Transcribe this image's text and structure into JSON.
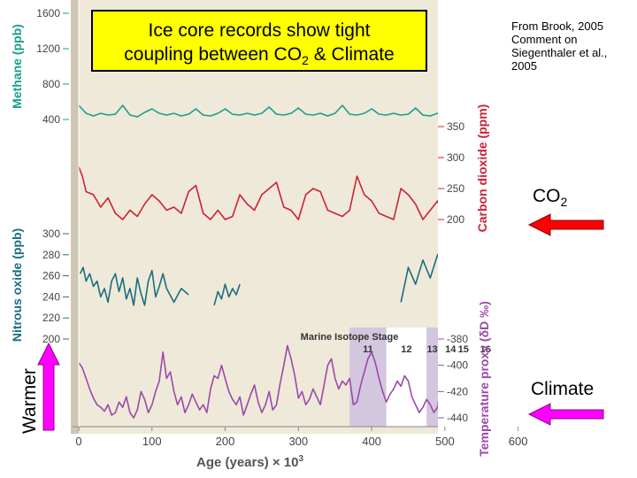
{
  "title": {
    "line1": "Ice core records show tight",
    "line2_pre": "coupling between CO",
    "line2_sub": "2",
    "line2_post": " & Climate"
  },
  "source": {
    "line1": "From Brook, 2005",
    "line2": "Comment on",
    "line3": "Siegenthaler et al.,",
    "line4": "2005"
  },
  "annotations": {
    "co2_label": "CO",
    "co2_sub": "2",
    "climate_label": "Climate",
    "warmer_label": "Warmer"
  },
  "colors": {
    "methane": "#1a9e8e",
    "co2": "#cc2233",
    "n2o": "#1a6e80",
    "temp": "#9a4aa8",
    "panel_bg": "#efe9d9",
    "shade": "#d3c6df",
    "arrow_red": "#ff0000",
    "arrow_magenta": "#ff00ff"
  },
  "chart_data": {
    "type": "line",
    "xlabel_main": "Age (years) × 10",
    "xlabel_sup": "3",
    "x_range": [
      0,
      650
    ],
    "x_ticks": [
      "0",
      "100",
      "200",
      "300",
      "400",
      "500",
      "600"
    ],
    "methane": {
      "label": "Methane (ppb)",
      "ticks": [
        "1600",
        "1200",
        "800",
        "400"
      ],
      "range": [
        400,
        1600
      ],
      "x": [
        0,
        10,
        20,
        30,
        40,
        50,
        60,
        70,
        80,
        90,
        100,
        110,
        120,
        130,
        140,
        150,
        160,
        170,
        180,
        190,
        200,
        210,
        220,
        230,
        240,
        250,
        260,
        270,
        280,
        290,
        300,
        310,
        320,
        330,
        340,
        350,
        360,
        370,
        380,
        390,
        400,
        410,
        420,
        430,
        440,
        450,
        460,
        470,
        480,
        490,
        500,
        510,
        520,
        530,
        540,
        550,
        560,
        570,
        580,
        590,
        600,
        610,
        620,
        630,
        640,
        650
      ],
      "y": [
        560,
        470,
        440,
        470,
        450,
        460,
        560,
        450,
        430,
        480,
        520,
        470,
        450,
        470,
        440,
        460,
        520,
        450,
        440,
        470,
        520,
        460,
        450,
        470,
        450,
        470,
        540,
        460,
        450,
        470,
        530,
        460,
        450,
        470,
        440,
        470,
        560,
        460,
        450,
        470,
        520,
        460,
        450,
        470,
        450,
        460,
        530,
        450,
        440,
        470,
        480,
        470,
        450,
        460,
        470,
        560,
        460,
        450,
        460,
        470,
        450,
        570,
        450,
        440,
        470,
        450
      ]
    },
    "co2": {
      "label": "Carbon dioxide (ppm)",
      "ticks": [
        "350",
        "300",
        "250",
        "200"
      ],
      "range": [
        200,
        350
      ],
      "x": [
        0,
        5,
        10,
        20,
        30,
        40,
        50,
        60,
        70,
        80,
        90,
        100,
        110,
        120,
        130,
        140,
        150,
        160,
        170,
        180,
        190,
        200,
        210,
        220,
        230,
        240,
        250,
        260,
        270,
        280,
        290,
        300,
        310,
        320,
        330,
        340,
        350,
        360,
        370,
        380,
        390,
        400,
        410,
        420,
        430,
        440,
        450,
        460,
        470,
        480,
        490,
        500,
        510,
        520,
        530,
        540,
        550,
        560,
        570,
        580,
        590,
        600,
        610,
        620,
        630,
        640,
        650
      ],
      "y": [
        285,
        270,
        245,
        240,
        220,
        235,
        210,
        200,
        215,
        205,
        225,
        240,
        230,
        215,
        220,
        210,
        245,
        255,
        210,
        200,
        215,
        200,
        205,
        240,
        225,
        215,
        240,
        250,
        260,
        220,
        215,
        200,
        240,
        250,
        245,
        215,
        210,
        205,
        215,
        270,
        240,
        230,
        210,
        205,
        200,
        250,
        240,
        225,
        200,
        215,
        230,
        200,
        210,
        230,
        205,
        260,
        255,
        200,
        215,
        250,
        230,
        210,
        200,
        215,
        210,
        200,
        195
      ]
    },
    "n2o": {
      "label": "Nitrous oxide (ppb)",
      "ticks": [
        "300",
        "280",
        "260",
        "240",
        "220",
        "200"
      ],
      "range": [
        200,
        300
      ],
      "segments": [
        {
          "x": [
            2,
            6,
            10,
            15,
            20,
            25,
            30,
            35,
            40,
            45,
            50,
            55,
            60,
            65,
            70,
            75,
            80,
            85,
            90,
            95,
            100,
            105,
            110,
            115,
            120,
            130,
            140,
            150
          ],
          "y": [
            262,
            268,
            255,
            262,
            250,
            255,
            240,
            248,
            235,
            255,
            262,
            245,
            258,
            238,
            248,
            232,
            258,
            243,
            232,
            255,
            265,
            240,
            250,
            262,
            248,
            235,
            248,
            242
          ]
        },
        {
          "x": [
            185,
            190,
            195,
            200,
            205,
            210,
            215,
            220
          ],
          "y": [
            232,
            245,
            238,
            252,
            240,
            248,
            242,
            252
          ]
        },
        {
          "x": [
            440,
            450,
            460,
            470,
            480,
            490,
            500,
            510,
            520,
            530,
            540,
            550,
            560,
            570,
            580,
            590,
            600,
            610,
            620,
            630
          ],
          "y": [
            235,
            268,
            252,
            275,
            258,
            280,
            262,
            248,
            272,
            255,
            260,
            240,
            278,
            248,
            268,
            258,
            262,
            270,
            250,
            258
          ]
        }
      ]
    },
    "temperature": {
      "label": "Temperature proxy (δD ‰)",
      "ticks": [
        "-380",
        "-400",
        "-420",
        "-440"
      ],
      "range": [
        -440,
        -380
      ],
      "x": [
        0,
        5,
        10,
        15,
        20,
        25,
        30,
        35,
        40,
        45,
        50,
        55,
        60,
        65,
        70,
        75,
        80,
        85,
        90,
        95,
        100,
        105,
        110,
        115,
        120,
        125,
        130,
        135,
        140,
        145,
        150,
        155,
        160,
        165,
        170,
        175,
        180,
        185,
        190,
        195,
        200,
        205,
        210,
        215,
        220,
        225,
        230,
        235,
        240,
        245,
        250,
        255,
        260,
        265,
        270,
        275,
        280,
        285,
        290,
        295,
        300,
        305,
        310,
        315,
        320,
        325,
        330,
        335,
        340,
        345,
        350,
        355,
        360,
        365,
        370,
        375,
        380,
        385,
        390,
        395,
        400,
        405,
        410,
        415,
        420,
        425,
        430,
        435,
        440,
        445,
        450,
        455,
        460,
        465,
        470,
        475,
        480,
        485,
        490,
        495,
        500,
        505,
        510,
        515,
        520,
        525,
        530,
        535,
        540,
        545,
        550,
        555,
        560,
        565,
        570,
        575,
        580,
        585,
        590,
        595,
        600,
        605,
        610,
        615,
        620,
        625,
        630,
        635,
        640,
        645,
        650
      ],
      "y": [
        -398,
        -402,
        -410,
        -418,
        -425,
        -430,
        -432,
        -435,
        -430,
        -438,
        -436,
        -428,
        -432,
        -424,
        -436,
        -440,
        -434,
        -420,
        -426,
        -436,
        -430,
        -420,
        -412,
        -390,
        -410,
        -405,
        -420,
        -430,
        -424,
        -436,
        -430,
        -422,
        -428,
        -434,
        -430,
        -436,
        -418,
        -408,
        -410,
        -400,
        -410,
        -420,
        -426,
        -430,
        -424,
        -438,
        -430,
        -422,
        -415,
        -428,
        -436,
        -430,
        -420,
        -434,
        -430,
        -414,
        -400,
        -385,
        -395,
        -408,
        -425,
        -420,
        -430,
        -426,
        -418,
        -424,
        -430,
        -415,
        -400,
        -395,
        -410,
        -418,
        -412,
        -415,
        -410,
        -430,
        -428,
        -415,
        -405,
        -395,
        -390,
        -398,
        -410,
        -420,
        -428,
        -422,
        -418,
        -412,
        -416,
        -408,
        -412,
        -424,
        -430,
        -436,
        -432,
        -426,
        -430,
        -436,
        -432,
        -412,
        -398,
        -392,
        -396,
        -408,
        -420,
        -430,
        -424,
        -428,
        -434,
        -430,
        -420,
        -412,
        -400,
        -394,
        -398,
        -408,
        -420,
        -426,
        -420,
        -410,
        -402,
        -398,
        -404,
        -416,
        -425,
        -430,
        -428,
        -434,
        -430,
        -426,
        -428
      ]
    },
    "isotope_panel": {
      "title": "Marine Isotope Stage",
      "stages": [
        "11",
        "12",
        "13",
        "14",
        "15",
        "16"
      ],
      "stage_bounds": [
        [
          370,
          420
        ],
        [
          420,
          475
        ],
        [
          475,
          525
        ],
        [
          525,
          560
        ],
        [
          560,
          620
        ],
        [
          620,
          650
        ]
      ],
      "shaded": [
        true,
        false,
        true,
        false,
        true,
        false
      ]
    }
  }
}
